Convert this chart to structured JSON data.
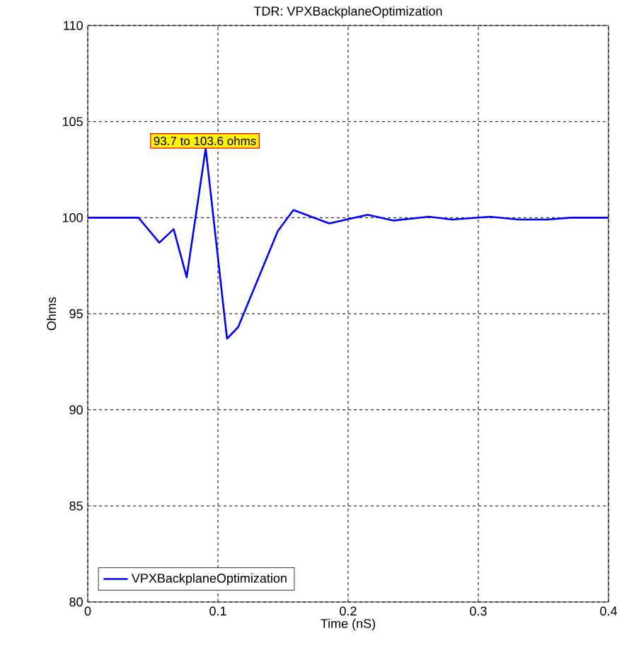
{
  "chart_data": {
    "type": "line",
    "title": "TDR: VPXBackplaneOptimization",
    "xlabel": "Time (nS)",
    "ylabel": "Ohms",
    "xlim": [
      0,
      0.4
    ],
    "ylim": [
      80,
      110
    ],
    "xticks": [
      0,
      0.1,
      0.2,
      0.3,
      0.4
    ],
    "yticks": [
      80,
      85,
      90,
      95,
      100,
      105,
      110
    ],
    "grid": true,
    "legend": "bottom left",
    "annotations": [
      {
        "text": "93.7 to 103.6 ohms",
        "x": 0.09,
        "y": 103.6
      }
    ],
    "series": [
      {
        "name": "VPXBackplaneOptimization",
        "color": "#0000ff",
        "x": [
          0,
          0.039,
          0.055,
          0.066,
          0.076,
          0.0906,
          0.107,
          0.1155,
          0.146,
          0.158,
          0.1855,
          0.215,
          0.235,
          0.262,
          0.28,
          0.309,
          0.331,
          0.353,
          0.371,
          0.4
        ],
        "values": [
          100,
          100,
          98.7,
          99.4,
          96.9,
          103.6,
          93.7,
          94.3,
          99.3,
          100.4,
          99.7,
          100.15,
          99.85,
          100.05,
          99.9,
          100.05,
          99.9,
          99.9,
          100,
          100
        ]
      }
    ]
  }
}
